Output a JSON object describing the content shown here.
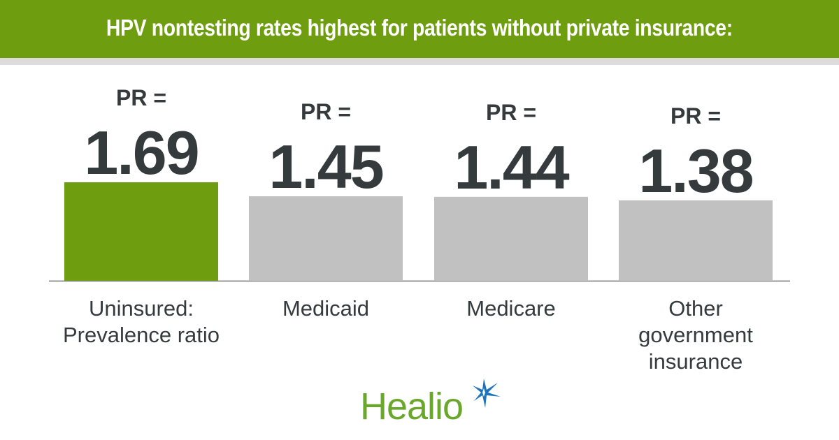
{
  "header": {
    "title": "HPV nontesting rates highest for patients without private insurance:"
  },
  "chart_data": {
    "type": "bar",
    "title": "HPV nontesting rates highest for patients without private insurance:",
    "xlabel": "",
    "ylabel": "",
    "value_prefix": "PR =",
    "categories": [
      [
        "Uninsured:",
        "Prevalence ratio"
      ],
      [
        "Medicaid"
      ],
      [
        "Medicare"
      ],
      [
        "Other",
        "government",
        "insurance"
      ]
    ],
    "category_names": [
      "Uninsured: Prevalence ratio",
      "Medicaid",
      "Medicare",
      "Other government insurance"
    ],
    "values": [
      1.69,
      1.45,
      1.44,
      1.38
    ],
    "value_labels": [
      "1.69",
      "1.45",
      "1.44",
      "1.38"
    ],
    "highlight_index": 0,
    "colors": {
      "highlight": "#6e9e0f",
      "default": "#c1c1c1",
      "baseline": "#9a9a9a",
      "text": "#353a3d"
    },
    "ylim": [
      0,
      1.69
    ],
    "grid": false,
    "legend": "none"
  },
  "logo": {
    "text": "Healio",
    "star_color": "#1e73be",
    "text_color": "#6aa82c"
  }
}
